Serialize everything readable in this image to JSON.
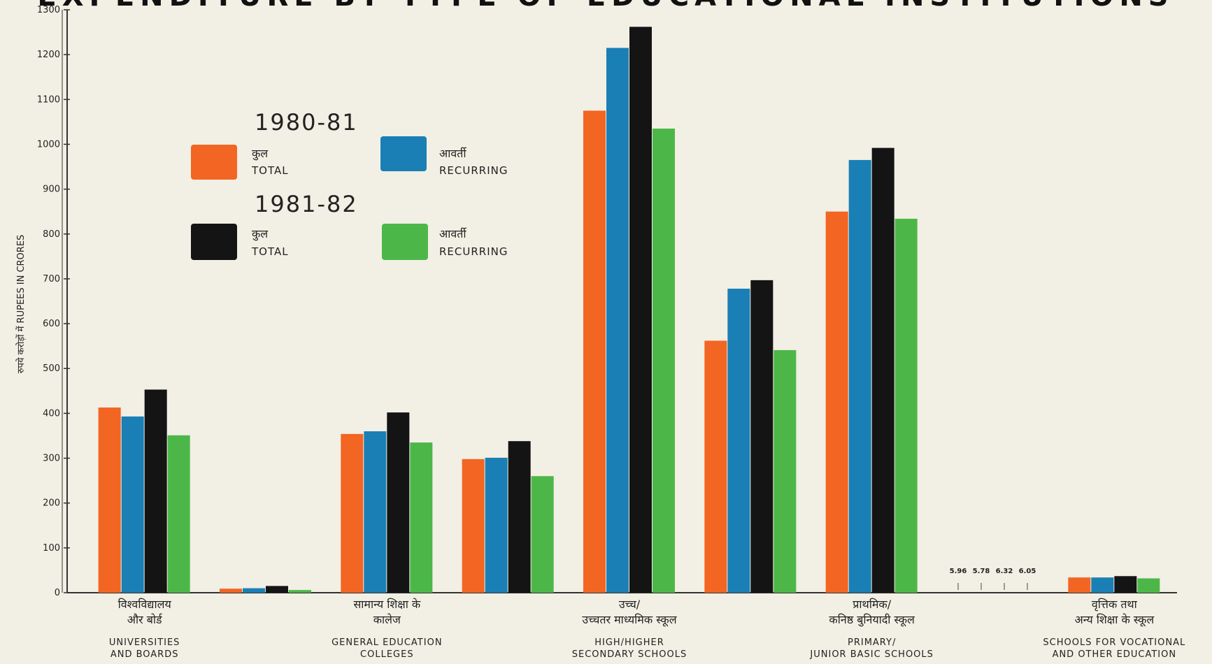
{
  "chart_data": {
    "type": "bar",
    "title": "EXPENDITURE BY TYPE OF EDUCATIONAL INSTITUTIONS",
    "ylabel": "रुपये करोड़ों में RUPEES IN CRORES",
    "ylim": [
      0,
      1300
    ],
    "yticks": [
      0,
      100,
      200,
      300,
      400,
      500,
      600,
      700,
      800,
      900,
      1000,
      1100,
      1200,
      1300
    ],
    "grid": false,
    "legend_position": "upper-left",
    "legend": {
      "groups": [
        {
          "year": "1980-81",
          "entries": [
            {
              "series_index": 0,
              "hindi": "कुल",
              "english": "TOTAL"
            },
            {
              "series_index": 1,
              "hindi": "आवर्ती",
              "english": "RECURRING"
            }
          ]
        },
        {
          "year": "1981-82",
          "entries": [
            {
              "series_index": 2,
              "hindi": "कुल",
              "english": "TOTAL"
            },
            {
              "series_index": 3,
              "hindi": "आवर्ती",
              "english": "RECURRING"
            }
          ]
        }
      ]
    },
    "categories": [
      {
        "hindi": [
          "विश्वविद्यालय",
          "और बोर्ड"
        ],
        "english": [
          "UNIVERSITIES",
          "AND BOARDS"
        ]
      },
      {
        "hindi": [],
        "english": []
      },
      {
        "hindi": [
          "सामान्य शिक्षा के",
          "कालेज"
        ],
        "english": [
          "GENERAL EDUCATION",
          "COLLEGES"
        ]
      },
      {
        "hindi": [],
        "english": []
      },
      {
        "hindi": [
          "उच्च/",
          "उच्चतर माध्यमिक स्कूल"
        ],
        "english": [
          "HIGH/HIGHER",
          "SECONDARY SCHOOLS"
        ]
      },
      {
        "hindi": [],
        "english": []
      },
      {
        "hindi": [
          "प्राथमिक/",
          "कनिष्ठ बुनियादी स्कूल"
        ],
        "english": [
          "PRIMARY/",
          "JUNIOR BASIC SCHOOLS"
        ]
      },
      {
        "hindi": [],
        "english": []
      },
      {
        "hindi": [
          "वृत्तिक तथा",
          "अन्य शिक्षा के स्कूल"
        ],
        "english": [
          "SCHOOLS FOR VOCATIONAL",
          "AND OTHER EDUCATION"
        ]
      }
    ],
    "series": [
      {
        "color": "#f26522",
        "values": [
          413,
          9,
          354,
          298,
          1075,
          562,
          850,
          0,
          34
        ]
      },
      {
        "color": "#1a7fb5",
        "values": [
          393,
          10,
          360,
          301,
          1215,
          678,
          965,
          0,
          34
        ]
      },
      {
        "color": "#141414",
        "values": [
          453,
          15,
          402,
          338,
          1262,
          697,
          992,
          0,
          37
        ]
      },
      {
        "color": "#4cb748",
        "values": [
          351,
          6,
          335,
          260,
          1035,
          541,
          834,
          0,
          32
        ]
      }
    ],
    "data_labels": [
      {
        "category_index": 7,
        "values": [
          "5.96",
          "5.78",
          "6.32",
          "6.05"
        ]
      }
    ]
  }
}
